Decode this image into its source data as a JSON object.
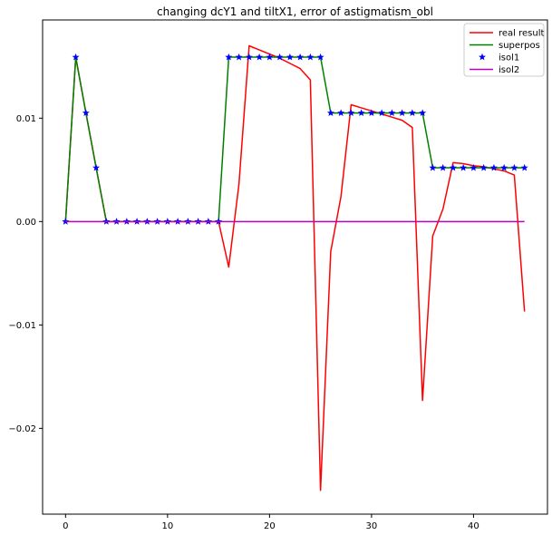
{
  "chart_data": {
    "type": "line",
    "title": "changing dcY1 and tiltX1, error of astigmatism_obl",
    "xlabel": "",
    "ylabel": "",
    "xlim": [
      -2.25,
      47.25
    ],
    "ylim": [
      -0.0283,
      0.0195
    ],
    "x_ticks": [
      0,
      10,
      20,
      30,
      40
    ],
    "x_tick_labels": [
      "0",
      "10",
      "20",
      "30",
      "40"
    ],
    "y_ticks": [
      -0.02,
      -0.01,
      0.0,
      0.01
    ],
    "y_tick_labels": [
      "−0.02",
      "−0.01",
      "0.00",
      "0.01"
    ],
    "grid": false,
    "legend_position": "top-right",
    "series": [
      {
        "name": "real result",
        "color": "#ff0000",
        "style": "line",
        "x": [
          0,
          1,
          2,
          3,
          4,
          5,
          6,
          7,
          8,
          9,
          10,
          11,
          12,
          13,
          14,
          15,
          16,
          17,
          18,
          19,
          20,
          21,
          22,
          23,
          24,
          25,
          26,
          27,
          28,
          29,
          30,
          31,
          32,
          33,
          34,
          35,
          36,
          37,
          38,
          39,
          40,
          41,
          42,
          43,
          44,
          45
        ],
        "values": [
          0,
          0.0159,
          0.0105,
          0.0052,
          0,
          0,
          0,
          0,
          0,
          0,
          0,
          0,
          0,
          0,
          0,
          0,
          -0.0044,
          0.0036,
          0.017,
          0.0166,
          0.0162,
          0.0158,
          0.0153,
          0.0148,
          0.0137,
          -0.026,
          -0.0029,
          0.0024,
          0.0113,
          0.011,
          0.0107,
          0.0104,
          0.0101,
          0.0098,
          0.0091,
          -0.0173,
          -0.0014,
          0.0012,
          0.0057,
          0.0056,
          0.0054,
          0.0053,
          0.0051,
          0.0049,
          0.0045,
          -0.0087
        ]
      },
      {
        "name": "superpos",
        "color": "#008000",
        "style": "line",
        "x": [
          0,
          1,
          2,
          3,
          4,
          5,
          6,
          7,
          8,
          9,
          10,
          11,
          12,
          13,
          14,
          15,
          16,
          17,
          18,
          19,
          20,
          21,
          22,
          23,
          24,
          25,
          26,
          27,
          28,
          29,
          30,
          31,
          32,
          33,
          34,
          35,
          36,
          37,
          38,
          39,
          40,
          41,
          42,
          43,
          44,
          45
        ],
        "values": [
          0,
          0.0159,
          0.0105,
          0.0052,
          0,
          0,
          0,
          0,
          0,
          0,
          0,
          0,
          0,
          0,
          0,
          0,
          0.0159,
          0.0159,
          0.0159,
          0.0159,
          0.0159,
          0.0159,
          0.0159,
          0.0159,
          0.0159,
          0.0159,
          0.0105,
          0.0105,
          0.0105,
          0.0105,
          0.0105,
          0.0105,
          0.0105,
          0.0105,
          0.0105,
          0.0105,
          0.0052,
          0.0052,
          0.0052,
          0.0052,
          0.0052,
          0.0052,
          0.0052,
          0.0052,
          0.0052,
          0.0052
        ]
      },
      {
        "name": "isol1",
        "color": "#0000ff",
        "style": "star",
        "x": [
          0,
          1,
          2,
          3,
          4,
          5,
          6,
          7,
          8,
          9,
          10,
          11,
          12,
          13,
          14,
          15,
          16,
          17,
          18,
          19,
          20,
          21,
          22,
          23,
          24,
          25,
          26,
          27,
          28,
          29,
          30,
          31,
          32,
          33,
          34,
          35,
          36,
          37,
          38,
          39,
          40,
          41,
          42,
          43,
          44,
          45
        ],
        "values": [
          0,
          0.0159,
          0.0105,
          0.0052,
          0,
          0,
          0,
          0,
          0,
          0,
          0,
          0,
          0,
          0,
          0,
          0,
          0.0159,
          0.0159,
          0.0159,
          0.0159,
          0.0159,
          0.0159,
          0.0159,
          0.0159,
          0.0159,
          0.0159,
          0.0105,
          0.0105,
          0.0105,
          0.0105,
          0.0105,
          0.0105,
          0.0105,
          0.0105,
          0.0105,
          0.0105,
          0.0052,
          0.0052,
          0.0052,
          0.0052,
          0.0052,
          0.0052,
          0.0052,
          0.0052,
          0.0052,
          0.0052
        ]
      },
      {
        "name": "isol2",
        "color": "#bf00bf",
        "style": "line",
        "x": [
          0,
          45
        ],
        "values": [
          0,
          0
        ]
      }
    ]
  }
}
